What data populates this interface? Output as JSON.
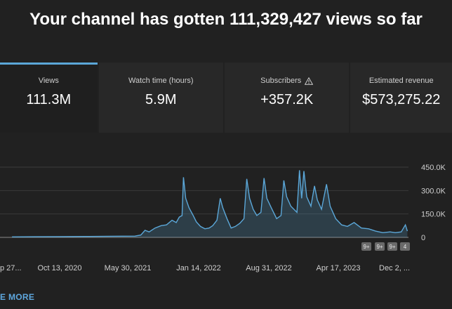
{
  "headline": "Your channel has gotten 111,329,427 views so far",
  "metrics": [
    {
      "label": "Views",
      "value": "111.3M"
    },
    {
      "label": "Watch time (hours)",
      "value": "5.9M"
    },
    {
      "label": "Subscribers",
      "value": "+357.2K",
      "icon": "warning-icon"
    },
    {
      "label": "Estimated revenue",
      "value": "$573,275.22"
    }
  ],
  "colors": {
    "accent": "#5ba7d8",
    "background": "#212121",
    "card": "#282828",
    "link": "#5ea7de"
  },
  "chart_data": {
    "type": "area",
    "series": [
      {
        "name": "Views"
      }
    ],
    "x_tick_labels": [
      "p 27...",
      "Oct 13, 2020",
      "May 30, 2021",
      "Jan 14, 2022",
      "Aug 31, 2022",
      "Apr 17, 2023",
      "Dec 2, ..."
    ],
    "y_tick_labels": [
      "450.0K",
      "300.0K",
      "150.0K",
      "0"
    ],
    "ylim": [
      0,
      450000
    ],
    "grid": true,
    "markers": [
      "9+",
      "9+",
      "9+",
      "4"
    ],
    "points": [
      [
        "2020-03-15",
        3000
      ],
      [
        "2020-06-01",
        4000
      ],
      [
        "2020-09-01",
        5000
      ],
      [
        "2020-12-01",
        6000
      ],
      [
        "2021-03-01",
        7000
      ],
      [
        "2021-05-30",
        8000
      ],
      [
        "2021-06-20",
        15000
      ],
      [
        "2021-07-05",
        45000
      ],
      [
        "2021-07-20",
        35000
      ],
      [
        "2021-08-10",
        60000
      ],
      [
        "2021-09-01",
        75000
      ],
      [
        "2021-09-20",
        80000
      ],
      [
        "2021-10-10",
        110000
      ],
      [
        "2021-10-25",
        95000
      ],
      [
        "2021-11-05",
        130000
      ],
      [
        "2021-11-15",
        140000
      ],
      [
        "2021-11-20",
        385000
      ],
      [
        "2021-11-28",
        250000
      ],
      [
        "2021-12-10",
        190000
      ],
      [
        "2021-12-25",
        140000
      ],
      [
        "2022-01-05",
        100000
      ],
      [
        "2022-01-20",
        70000
      ],
      [
        "2022-02-05",
        55000
      ],
      [
        "2022-02-20",
        60000
      ],
      [
        "2022-03-05",
        75000
      ],
      [
        "2022-03-20",
        110000
      ],
      [
        "2022-04-01",
        250000
      ],
      [
        "2022-04-10",
        190000
      ],
      [
        "2022-04-25",
        120000
      ],
      [
        "2022-05-10",
        60000
      ],
      [
        "2022-05-25",
        70000
      ],
      [
        "2022-06-10",
        90000
      ],
      [
        "2022-06-25",
        120000
      ],
      [
        "2022-07-05",
        375000
      ],
      [
        "2022-07-15",
        250000
      ],
      [
        "2022-07-28",
        180000
      ],
      [
        "2022-08-10",
        140000
      ],
      [
        "2022-08-25",
        160000
      ],
      [
        "2022-09-05",
        380000
      ],
      [
        "2022-09-15",
        250000
      ],
      [
        "2022-10-01",
        190000
      ],
      [
        "2022-10-20",
        120000
      ],
      [
        "2022-11-05",
        140000
      ],
      [
        "2022-11-15",
        365000
      ],
      [
        "2022-11-25",
        260000
      ],
      [
        "2022-12-10",
        200000
      ],
      [
        "2023-01-01",
        160000
      ],
      [
        "2023-01-10",
        430000
      ],
      [
        "2023-01-18",
        250000
      ],
      [
        "2023-01-26",
        425000
      ],
      [
        "2023-02-05",
        260000
      ],
      [
        "2023-02-20",
        200000
      ],
      [
        "2023-03-05",
        330000
      ],
      [
        "2023-03-15",
        240000
      ],
      [
        "2023-03-30",
        180000
      ],
      [
        "2023-04-17",
        340000
      ],
      [
        "2023-04-30",
        200000
      ],
      [
        "2023-05-20",
        120000
      ],
      [
        "2023-06-10",
        80000
      ],
      [
        "2023-07-01",
        70000
      ],
      [
        "2023-07-25",
        95000
      ],
      [
        "2023-08-20",
        60000
      ],
      [
        "2023-09-15",
        55000
      ],
      [
        "2023-10-10",
        40000
      ],
      [
        "2023-11-05",
        30000
      ],
      [
        "2023-12-01",
        35000
      ],
      [
        "2023-12-20",
        30000
      ],
      [
        "2024-01-10",
        35000
      ],
      [
        "2024-01-25",
        80000
      ],
      [
        "2024-02-01",
        40000
      ]
    ]
  },
  "see_more": "E MORE"
}
